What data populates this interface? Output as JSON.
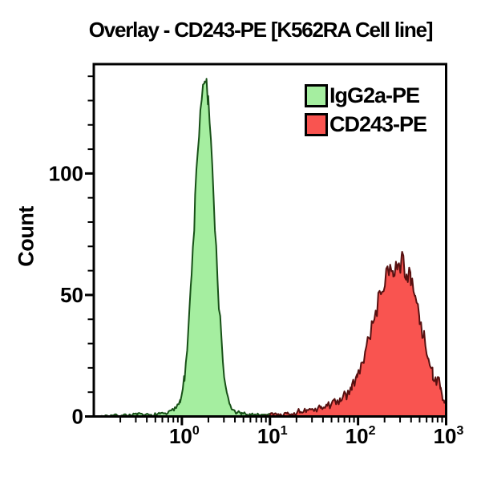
{
  "chart_data": {
    "type": "area",
    "subtype": "flow-cytometry-histogram-overlay",
    "title": "Overlay - CD243-PE [K562RA Cell line]",
    "x_scale": "log10",
    "x_range_log": [
      -1,
      3
    ],
    "x_major_tick_exponents": [
      0,
      1,
      2,
      3
    ],
    "x_tick_mantissa": "10",
    "y_label": "Count",
    "y_major_ticks": [
      "0",
      "50",
      "100"
    ],
    "y_major_tick_values": [
      0,
      50,
      100
    ],
    "y_minor_step": 10,
    "y_max": 145,
    "grid": false,
    "legend_position": "top-right-inside",
    "frame_color": "#000000",
    "series": [
      {
        "name": "IgG2a-PE",
        "fill": "#a5eea0",
        "stroke": "#175017",
        "peak_x": 1.8,
        "peak_count": 140,
        "noise": 0.5,
        "noise_floor": 0.8,
        "seed": 7,
        "points_log10x_count": [
          [
            -1.0,
            0
          ],
          [
            -0.7,
            0.5
          ],
          [
            -0.5,
            0.8
          ],
          [
            -0.35,
            0.5
          ],
          [
            -0.25,
            1
          ],
          [
            -0.15,
            1.5
          ],
          [
            -0.08,
            3
          ],
          [
            -0.02,
            7
          ],
          [
            0.03,
            16
          ],
          [
            0.07,
            32
          ],
          [
            0.11,
            58
          ],
          [
            0.15,
            88
          ],
          [
            0.18,
            110
          ],
          [
            0.21,
            126
          ],
          [
            0.24,
            136
          ],
          [
            0.26,
            140
          ],
          [
            0.28,
            135
          ],
          [
            0.3,
            127
          ],
          [
            0.33,
            112
          ],
          [
            0.36,
            92
          ],
          [
            0.39,
            68
          ],
          [
            0.42,
            47
          ],
          [
            0.45,
            30
          ],
          [
            0.48,
            17
          ],
          [
            0.51,
            9
          ],
          [
            0.55,
            4
          ],
          [
            0.6,
            2
          ],
          [
            0.68,
            1
          ],
          [
            0.8,
            0.8
          ],
          [
            0.95,
            0.8
          ],
          [
            1.05,
            0.6
          ]
        ]
      },
      {
        "name": "CD243-PE",
        "fill": "#f95450",
        "stroke": "#571010",
        "peak_x": 280,
        "peak_count": 64,
        "noise": 0.6,
        "noise_floor": 0.9,
        "seed": 13,
        "points_log10x_count": [
          [
            0.95,
            0.5
          ],
          [
            1.05,
            1.2
          ],
          [
            1.12,
            0.8
          ],
          [
            1.2,
            1.8
          ],
          [
            1.28,
            1.2
          ],
          [
            1.35,
            2.5
          ],
          [
            1.42,
            2
          ],
          [
            1.5,
            3
          ],
          [
            1.58,
            3.5
          ],
          [
            1.65,
            4.5
          ],
          [
            1.72,
            5.5
          ],
          [
            1.8,
            7
          ],
          [
            1.87,
            9
          ],
          [
            1.93,
            12
          ],
          [
            1.99,
            16
          ],
          [
            2.05,
            22
          ],
          [
            2.11,
            30
          ],
          [
            2.17,
            38
          ],
          [
            2.23,
            47
          ],
          [
            2.29,
            54
          ],
          [
            2.35,
            59
          ],
          [
            2.4,
            62
          ],
          [
            2.45,
            64
          ],
          [
            2.5,
            63
          ],
          [
            2.55,
            60
          ],
          [
            2.6,
            55
          ],
          [
            2.65,
            48
          ],
          [
            2.7,
            40
          ],
          [
            2.75,
            32
          ],
          [
            2.8,
            24
          ],
          [
            2.85,
            17
          ],
          [
            2.89,
            13
          ],
          [
            2.92,
            17
          ],
          [
            2.94,
            12
          ],
          [
            2.96,
            8
          ],
          [
            2.98,
            6
          ],
          [
            3.0,
            7
          ]
        ]
      }
    ]
  }
}
